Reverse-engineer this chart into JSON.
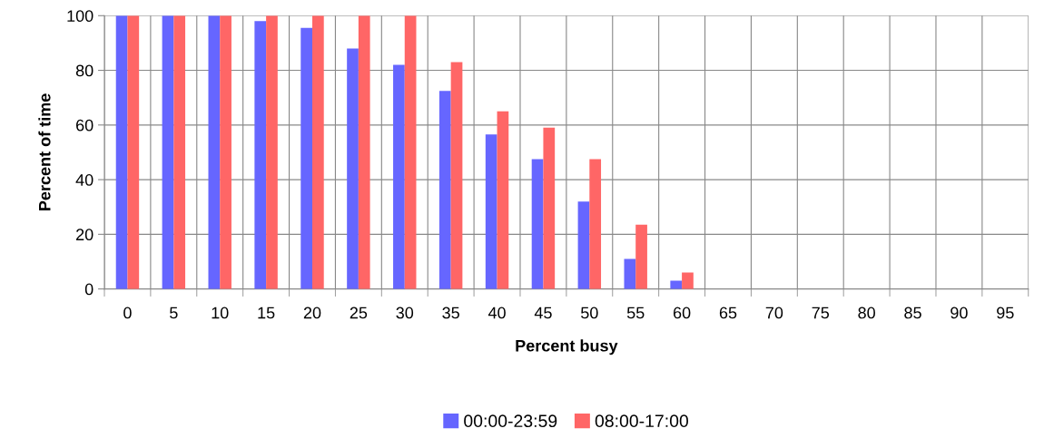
{
  "chart_data": {
    "type": "bar",
    "xlabel": "Percent busy",
    "ylabel": "Percent of time",
    "categories": [
      "0",
      "5",
      "10",
      "15",
      "20",
      "25",
      "30",
      "35",
      "40",
      "45",
      "50",
      "55",
      "60",
      "65",
      "70",
      "75",
      "80",
      "85",
      "90",
      "95"
    ],
    "series": [
      {
        "name": "00:00-23:59",
        "color": "#6666ff",
        "values": [
          100,
          100,
          100,
          98,
          95.5,
          88,
          82,
          72.5,
          56.5,
          47.5,
          32,
          11,
          3,
          0,
          0,
          0,
          0,
          0,
          0,
          0
        ]
      },
      {
        "name": "08:00-17:00",
        "color": "#ff6666",
        "values": [
          100,
          100,
          100,
          100,
          100,
          100,
          100,
          83,
          65,
          59,
          47.5,
          23.5,
          6,
          0,
          0,
          0,
          0,
          0,
          0,
          0
        ]
      }
    ],
    "ylim": [
      0,
      100
    ],
    "yticks": [
      0,
      20,
      40,
      60,
      80,
      100
    ],
    "grid": true,
    "legend": "bottom"
  }
}
